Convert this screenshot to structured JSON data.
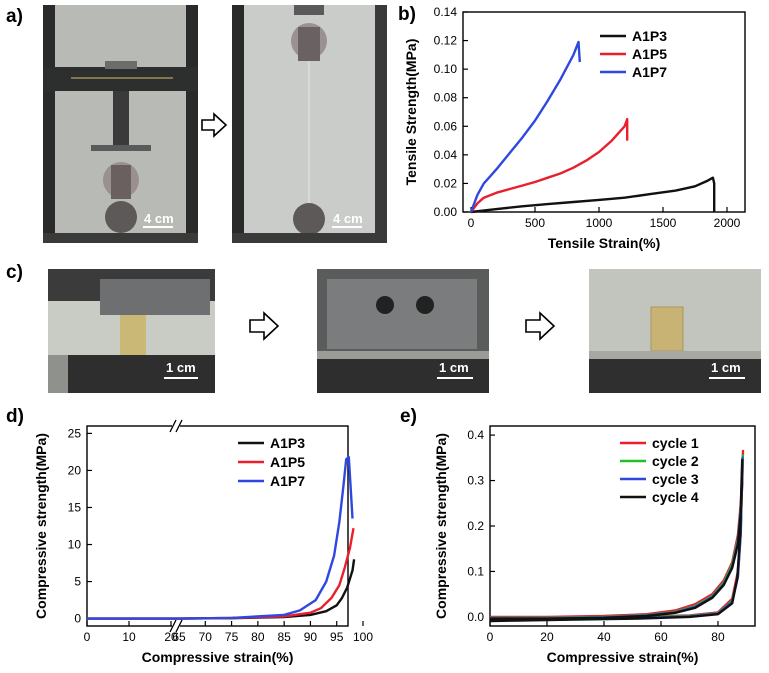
{
  "panel_labels": {
    "a": "a)",
    "b": "b)",
    "c": "c)",
    "d": "d)",
    "e": "e)"
  },
  "photos": {
    "a1_scale": "4 cm",
    "a2_scale": "4 cm",
    "c1_scale": "1 cm",
    "c2_scale": "1 cm",
    "c3_scale": "1 cm"
  },
  "colors": {
    "black": "#111111",
    "red": "#e8202e",
    "blue": "#2f48e0",
    "green": "#22c022"
  },
  "chart_data": [
    {
      "id": "b",
      "type": "line",
      "xlabel": "Tensile Strain(%)",
      "ylabel": "Tensile Strength(MPa)",
      "xlim": [
        0,
        2000
      ],
      "ylim": [
        0,
        0.14
      ],
      "xticks": [
        "0",
        "500",
        "1000",
        "1500",
        "2000"
      ],
      "yticks": [
        "0.00",
        "0.02",
        "0.04",
        "0.06",
        "0.08",
        "0.10",
        "0.12",
        "0.14"
      ],
      "legend_position": "top-right",
      "series": [
        {
          "name": "A1P3",
          "color": "#111111",
          "x": [
            0,
            200,
            400,
            600,
            800,
            1000,
            1200,
            1400,
            1600,
            1750,
            1850,
            1890,
            1900,
            1900
          ],
          "y": [
            0,
            0.002,
            0.004,
            0.0055,
            0.007,
            0.0085,
            0.01,
            0.0125,
            0.015,
            0.018,
            0.022,
            0.024,
            0.02,
            0
          ]
        },
        {
          "name": "A1P5",
          "color": "#e8202e",
          "x": [
            0,
            50,
            100,
            200,
            300,
            400,
            500,
            600,
            700,
            800,
            900,
            1000,
            1100,
            1200,
            1220,
            1220
          ],
          "y": [
            0,
            0.006,
            0.01,
            0.0135,
            0.016,
            0.0185,
            0.021,
            0.024,
            0.027,
            0.031,
            0.036,
            0.042,
            0.05,
            0.06,
            0.065,
            0.05
          ]
        },
        {
          "name": "A1P7",
          "color": "#2f48e0",
          "x": [
            0,
            50,
            100,
            150,
            200,
            300,
            400,
            500,
            600,
            700,
            800,
            840,
            850
          ],
          "y": [
            0,
            0.012,
            0.02,
            0.025,
            0.03,
            0.041,
            0.052,
            0.064,
            0.078,
            0.093,
            0.11,
            0.119,
            0.105
          ]
        }
      ]
    },
    {
      "id": "d",
      "type": "line",
      "xlabel": "Compressive strain(%)",
      "ylabel": "Compressive strength(MPa)",
      "xlim": [
        0,
        100
      ],
      "ylim": [
        -1,
        26
      ],
      "xticks": [
        "0",
        "10",
        "20",
        "65",
        "70",
        "75",
        "80",
        "85",
        "90",
        "95",
        "100"
      ],
      "yticks": [
        "0",
        "5",
        "10",
        "15",
        "20",
        "25"
      ],
      "axis_break": [
        25,
        65
      ],
      "legend_position": "top-right",
      "series": [
        {
          "name": "A1P3",
          "color": "#111111",
          "x": [
            0,
            65,
            75,
            85,
            90,
            93,
            95,
            96,
            97,
            98,
            98.3
          ],
          "y": [
            0,
            0,
            0.05,
            0.2,
            0.5,
            1.0,
            1.8,
            2.8,
            4.2,
            6.5,
            8.0
          ]
        },
        {
          "name": "A1P5",
          "color": "#e8202e",
          "x": [
            0,
            65,
            75,
            85,
            90,
            92,
            94,
            95.5,
            96.5,
            97.5,
            98.2
          ],
          "y": [
            0,
            0,
            0.08,
            0.3,
            0.8,
            1.4,
            2.8,
            4.5,
            6.8,
            9.5,
            12.2
          ]
        },
        {
          "name": "A1P7",
          "color": "#2f48e0",
          "x": [
            0,
            65,
            75,
            85,
            88,
            91,
            93,
            94.5,
            95.5,
            96.3,
            96.8,
            97.3,
            97.8,
            98
          ],
          "y": [
            0,
            0,
            0.1,
            0.5,
            1.1,
            2.5,
            5,
            8.5,
            13,
            18,
            21.5,
            21.8,
            16,
            13.5
          ]
        }
      ]
    },
    {
      "id": "e",
      "type": "line",
      "xlabel": "Compressive strain(%)",
      "ylabel": "Compressive strength(MPa)",
      "xlim": [
        0,
        93
      ],
      "ylim": [
        -0.02,
        0.42
      ],
      "xticks": [
        "0",
        "20",
        "40",
        "60",
        "80"
      ],
      "yticks": [
        "0.0",
        "0.1",
        "0.2",
        "0.3",
        "0.4"
      ],
      "legend_position": "top-right",
      "series": [
        {
          "name": "cycle 1",
          "color": "#e8202e",
          "x": [
            0,
            20,
            40,
            55,
            65,
            72,
            78,
            82,
            85,
            87,
            88,
            88.5,
            88.8,
            88.5,
            88,
            87,
            85,
            80,
            70,
            50,
            30,
            10,
            0
          ],
          "y": [
            0,
            0,
            0.002,
            0.006,
            0.014,
            0.028,
            0.05,
            0.08,
            0.12,
            0.18,
            0.25,
            0.31,
            0.365,
            0.3,
            0.2,
            0.1,
            0.04,
            0.01,
            0.003,
            0,
            -0.002,
            -0.004,
            -0.005
          ]
        },
        {
          "name": "cycle 2",
          "color": "#22c022",
          "x": [
            0,
            20,
            40,
            55,
            65,
            72,
            78,
            82,
            85,
            87,
            88,
            88.5,
            88.7,
            88.4,
            88,
            87,
            85,
            80,
            70,
            50,
            30,
            10,
            0
          ],
          "y": [
            -0.002,
            -0.002,
            0,
            0.004,
            0.011,
            0.024,
            0.046,
            0.075,
            0.115,
            0.17,
            0.24,
            0.3,
            0.355,
            0.29,
            0.19,
            0.09,
            0.035,
            0.008,
            0.002,
            -0.002,
            -0.004,
            -0.006,
            -0.007
          ]
        },
        {
          "name": "cycle 3",
          "color": "#2f48e0",
          "x": [
            0,
            20,
            40,
            55,
            65,
            72,
            78,
            82,
            85,
            87,
            88,
            88.5,
            88.6,
            88.3,
            88,
            87,
            85,
            80,
            70,
            50,
            30,
            10,
            0
          ],
          "y": [
            -0.003,
            -0.003,
            -0.001,
            0.003,
            0.01,
            0.022,
            0.044,
            0.072,
            0.11,
            0.165,
            0.235,
            0.295,
            0.35,
            0.285,
            0.185,
            0.088,
            0.033,
            0.007,
            0.001,
            -0.003,
            -0.005,
            -0.007,
            -0.008
          ]
        },
        {
          "name": "cycle 4",
          "color": "#111111",
          "x": [
            0,
            20,
            40,
            55,
            65,
            72,
            78,
            82,
            85,
            87,
            88,
            88.4,
            88.5,
            88.2,
            87.8,
            86.8,
            85,
            80,
            70,
            50,
            30,
            10,
            0
          ],
          "y": [
            -0.004,
            -0.004,
            -0.002,
            0.002,
            0.009,
            0.02,
            0.042,
            0.07,
            0.108,
            0.16,
            0.23,
            0.29,
            0.345,
            0.28,
            0.18,
            0.085,
            0.03,
            0.006,
            0,
            -0.004,
            -0.006,
            -0.008,
            -0.009
          ]
        }
      ]
    }
  ]
}
